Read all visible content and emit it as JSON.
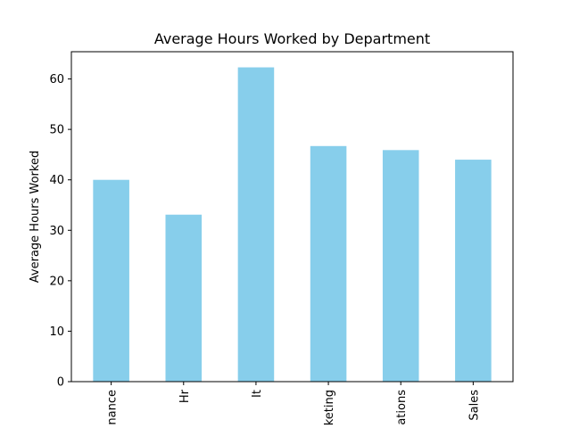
{
  "chart_data": {
    "type": "bar",
    "title": "Average Hours Worked by Department",
    "xlabel": "",
    "ylabel": "Average Hours Worked",
    "categories": [
      "Finance",
      "Hr",
      "It",
      "Marketing",
      "Operations",
      "Sales"
    ],
    "visible_tick_labels": [
      "nance",
      "Hr",
      "It",
      "keting",
      "ations",
      "Sales"
    ],
    "values": [
      40.0,
      33.1,
      62.3,
      46.7,
      45.9,
      44.0
    ],
    "ylim": [
      0,
      65.4
    ],
    "yticks": [
      0,
      10,
      20,
      30,
      40,
      50,
      60
    ],
    "bar_color": "#87ceeb",
    "grid": false,
    "legend": "none",
    "x_tick_rotation": "vertical"
  }
}
